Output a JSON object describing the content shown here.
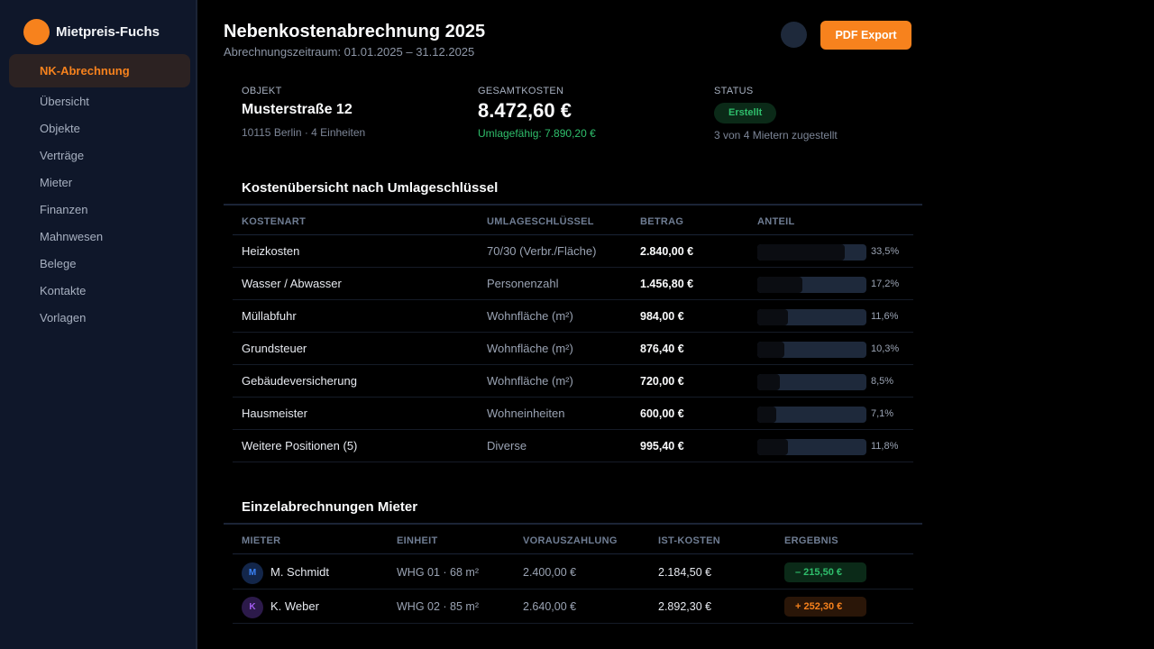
{
  "app": {
    "name": "Mietpreis-Fuchs"
  },
  "sidebar": {
    "active": "NK-Abrechnung",
    "items": [
      "Übersicht",
      "Objekte",
      "Verträge",
      "Mieter",
      "Finanzen",
      "Mahnwesen",
      "Belege",
      "Kontakte",
      "Vorlagen"
    ]
  },
  "header": {
    "title": "Nebenkostenabrechnung 2025",
    "subtitle": "Abrechnungszeitraum: 01.01.2025 – 31.12.2025",
    "export_label": "PDF Export"
  },
  "summary": {
    "objekt": {
      "label": "OBJEKT",
      "value": "Musterstraße 12",
      "sub": "10115 Berlin · 4 Einheiten"
    },
    "kosten": {
      "label": "GESAMTKOSTEN",
      "value": "8.472,60 €",
      "sub": "Umlagefähig: 7.890,20 €"
    },
    "status": {
      "label": "STATUS",
      "badge": "Erstellt",
      "sub": "3 von 4 Mietern zugestellt"
    }
  },
  "costs": {
    "title": "Kostenübersicht nach Umlageschlüssel",
    "columns": [
      "KOSTENART",
      "UMLAGESCHLÜSSEL",
      "BETRAG",
      "ANTEIL"
    ],
    "rows": [
      {
        "name": "Heizkosten",
        "key": "70/30 (Verbr./Fläche)",
        "amount": "2.840,00 €",
        "share": "33,5%",
        "share_value": 33.5
      },
      {
        "name": "Wasser / Abwasser",
        "key": "Personenzahl",
        "amount": "1.456,80 €",
        "share": "17,2%",
        "share_value": 17.2
      },
      {
        "name": "Müllabfuhr",
        "key": "Wohnfläche (m²)",
        "amount": "984,00 €",
        "share": "11,6%",
        "share_value": 11.6
      },
      {
        "name": "Grundsteuer",
        "key": "Wohnfläche (m²)",
        "amount": "876,40 €",
        "share": "10,3%",
        "share_value": 10.3
      },
      {
        "name": "Gebäudeversicherung",
        "key": "Wohnfläche (m²)",
        "amount": "720,00 €",
        "share": "8,5%",
        "share_value": 8.5
      },
      {
        "name": "Hausmeister",
        "key": "Wohneinheiten",
        "amount": "600,00 €",
        "share": "7,1%",
        "share_value": 7.1
      },
      {
        "name": "Weitere Positionen (5)",
        "key": "Diverse",
        "amount": "995,40 €",
        "share": "11,8%",
        "share_value": 11.8
      }
    ]
  },
  "tenants": {
    "title": "Einzelabrechnungen Mieter",
    "columns": [
      "MIETER",
      "EINHEIT",
      "VORAUSZAHLUNG",
      "IST-KOSTEN",
      "ERGEBNIS"
    ],
    "rows": [
      {
        "initial": "M",
        "name": "M. Schmidt",
        "unit": "WHG 01 · 68 m²",
        "prepaid": "2.400,00 €",
        "actual": "2.184,50 €",
        "result": "– 215,50 €"
      },
      {
        "initial": "K",
        "name": "K. Weber",
        "unit": "WHG 02 · 85 m²",
        "prepaid": "2.640,00 €",
        "actual": "2.892,30 €",
        "result": "+ 252,30 €"
      }
    ]
  },
  "colors": {
    "accent": "#f7821d",
    "positive": "#2fbf6c",
    "sidebar": "#0f172a"
  }
}
